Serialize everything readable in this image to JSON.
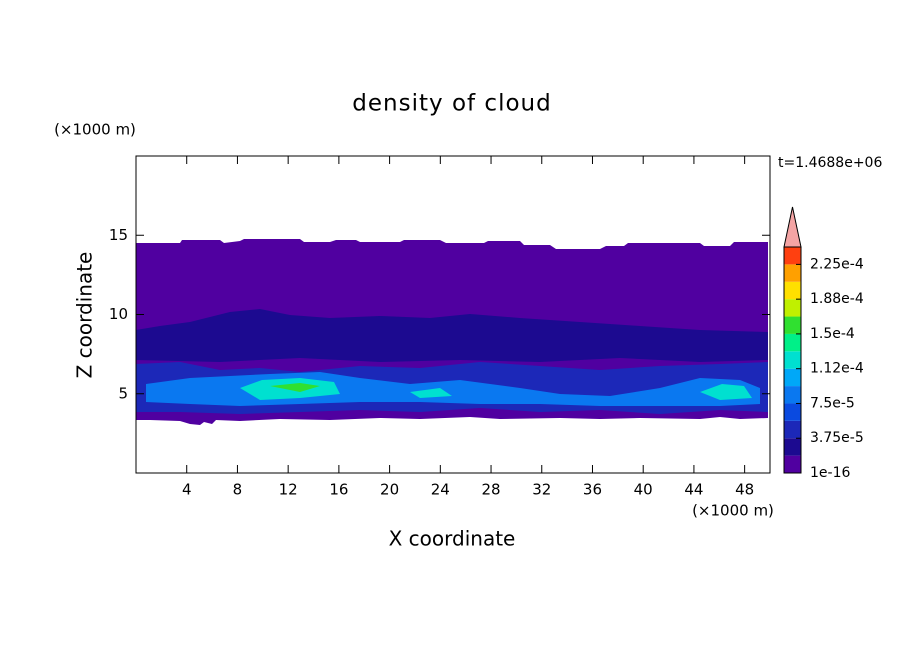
{
  "chart_data": {
    "type": "contour",
    "title": "density of cloud",
    "xlabel": "X coordinate",
    "ylabel": "Z coordinate",
    "x_unit": "(×1000 m)",
    "y_unit": "(×1000 m)",
    "time_label": "t=1.4688e+06",
    "xlim": [
      0,
      50
    ],
    "xticks": [
      4,
      8,
      12,
      16,
      20,
      24,
      28,
      32,
      36,
      40,
      44,
      48
    ],
    "ylim": [
      0,
      20
    ],
    "yticks": [
      5,
      10,
      15
    ],
    "colorbar": {
      "lim": [
        1e-16,
        0.00024375
      ],
      "colors": [
        "#5000a0",
        "#1c0a90",
        "#1c28b8",
        "#0a4ae0",
        "#0a78f0",
        "#00a8f8",
        "#00e0d0",
        "#00f088",
        "#30e030",
        "#c0f000",
        "#ffe000",
        "#ffa000",
        "#ff4010"
      ],
      "overflow_color": "#f4a4a4",
      "ticks": [
        {
          "value": 1e-16,
          "label": "1e-16"
        },
        {
          "value": 3.75e-05,
          "label": "3.75e-5"
        },
        {
          "value": 7.5e-05,
          "label": "7.5e-5"
        },
        {
          "value": 0.0001125,
          "label": "1.12e-4"
        },
        {
          "value": 0.00015,
          "label": "1.5e-4"
        },
        {
          "value": 0.0001875,
          "label": "1.88e-4"
        },
        {
          "value": 0.000225,
          "label": "2.25e-4"
        }
      ]
    }
  }
}
